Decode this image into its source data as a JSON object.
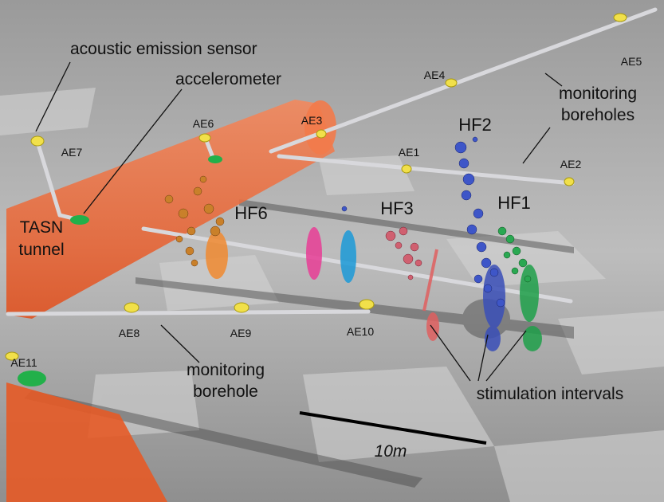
{
  "annotations": {
    "acoustic_emission_sensor": "acoustic emission sensor",
    "accelerometer": "accelerometer",
    "monitoring_boreholes": [
      "monitoring",
      "boreholes"
    ],
    "tasn_tunnel": [
      "TASN",
      "tunnel"
    ],
    "monitoring_borehole": [
      "monitoring",
      "borehole"
    ],
    "stimulation_intervals": "stimulation intervals",
    "scale_bar": "10m"
  },
  "sensors": [
    "AE1",
    "AE2",
    "AE3",
    "AE4",
    "AE5",
    "AE6",
    "AE7",
    "AE8",
    "AE9",
    "AE10",
    "AE11"
  ],
  "hydraulic_fractures": [
    "HF1",
    "HF2",
    "HF3",
    "HF6"
  ]
}
